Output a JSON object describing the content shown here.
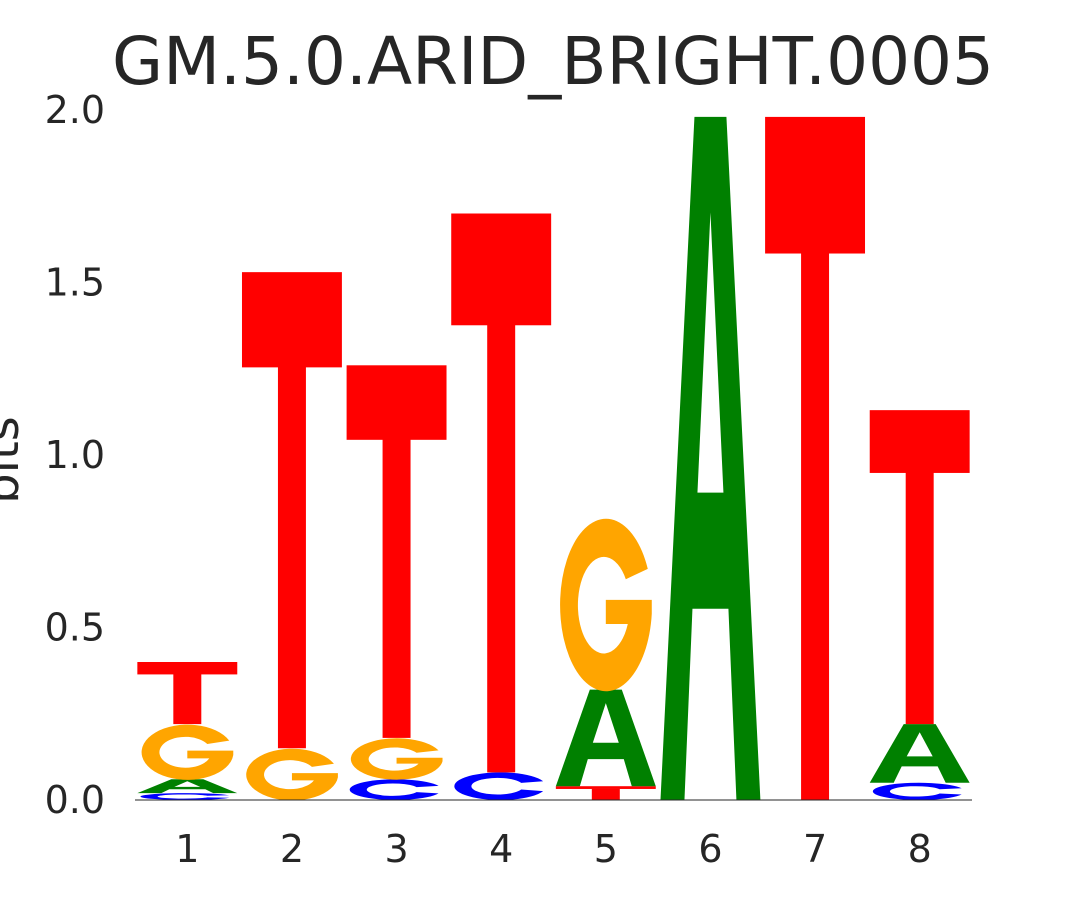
{
  "chart_data": {
    "type": "sequence-logo",
    "title": "GM.5.0.ARID_BRIGHT.0005",
    "ylabel": "bits",
    "ylim": [
      0,
      2.0
    ],
    "yticks": [
      "0.0",
      "0.5",
      "1.0",
      "1.5",
      "2.0"
    ],
    "positions": [
      "1",
      "2",
      "3",
      "4",
      "5",
      "6",
      "7",
      "8"
    ],
    "colors": {
      "A": "#008000",
      "C": "#0000ff",
      "G": "#ffa500",
      "T": "#ff0000"
    },
    "columns": [
      [
        {
          "letter": "C",
          "bits": 0.02
        },
        {
          "letter": "A",
          "bits": 0.04
        },
        {
          "letter": "G",
          "bits": 0.16
        },
        {
          "letter": "T",
          "bits": 0.18
        }
      ],
      [
        {
          "letter": "G",
          "bits": 0.15
        },
        {
          "letter": "T",
          "bits": 1.38
        }
      ],
      [
        {
          "letter": "C",
          "bits": 0.06
        },
        {
          "letter": "G",
          "bits": 0.12
        },
        {
          "letter": "T",
          "bits": 1.08
        }
      ],
      [
        {
          "letter": "C",
          "bits": 0.08
        },
        {
          "letter": "T",
          "bits": 1.62
        }
      ],
      [
        {
          "letter": "T",
          "bits": 0.04
        },
        {
          "letter": "A",
          "bits": 0.28
        },
        {
          "letter": "G",
          "bits": 0.5
        }
      ],
      [
        {
          "letter": "A",
          "bits": 1.98
        }
      ],
      [
        {
          "letter": "T",
          "bits": 1.98
        }
      ],
      [
        {
          "letter": "C",
          "bits": 0.05
        },
        {
          "letter": "A",
          "bits": 0.17
        },
        {
          "letter": "T",
          "bits": 0.91
        }
      ]
    ]
  }
}
